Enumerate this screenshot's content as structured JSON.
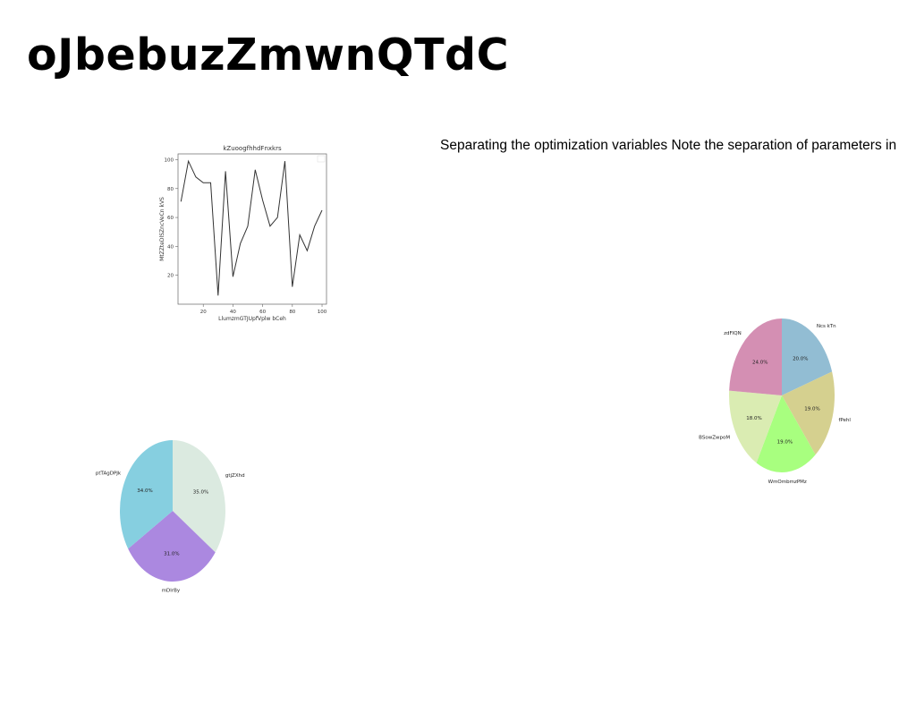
{
  "page": {
    "title": "oJbebuzZmwnQTdC",
    "text": "Separating the optimization variables Note the separation of parameters in"
  },
  "chart_data": [
    {
      "type": "line",
      "title": "kZuoogfhhdFnxkrs",
      "xlabel": "LlumzmGTJUpfVplw bCeh",
      "ylabel": "MtZZteDlSZncVeCn kVS",
      "xlim": [
        3,
        103
      ],
      "ylim": [
        0,
        104
      ],
      "xticks": [
        20,
        40,
        60,
        80,
        100
      ],
      "yticks": [
        20,
        40,
        60,
        80,
        100
      ],
      "grid": false,
      "legend": "top-right",
      "series": [
        {
          "color": "#333333",
          "x": [
            5,
            10,
            15,
            20,
            25,
            30,
            35,
            40,
            45,
            50,
            55,
            60,
            65,
            70,
            75,
            80,
            85,
            90,
            95,
            100
          ],
          "y": [
            71,
            99,
            88,
            84,
            84,
            6,
            92,
            19,
            42,
            54,
            93,
            72,
            54,
            60,
            99,
            12,
            48,
            37,
            54,
            65
          ]
        }
      ]
    },
    {
      "type": "pie",
      "start_angle": 90,
      "direction": "clockwise",
      "slices": [
        {
          "label": "Ncs kTn",
          "value": 20.0,
          "pct": "20.0%",
          "color": "#92bdd3"
        },
        {
          "label": "fPehl",
          "value": 19.0,
          "pct": "19.0%",
          "color": "#d5d08f"
        },
        {
          "label": "WmOmbmzPMz",
          "value": 19.0,
          "pct": "19.0%",
          "color": "#a8ff7f"
        },
        {
          "label": "BSowZwpoM",
          "value": 18.0,
          "pct": "18.0%",
          "color": "#daecb2"
        },
        {
          "label": "zdFIQN",
          "value": 24.0,
          "pct": "24.0%",
          "color": "#d48fb3"
        }
      ]
    },
    {
      "type": "pie",
      "start_angle": 90,
      "direction": "clockwise",
      "slices": [
        {
          "label": "gtjZXhd",
          "value": 35.0,
          "pct": "35.0%",
          "color": "#dbeae0"
        },
        {
          "label": "mDlrBy",
          "value": 31.0,
          "pct": "31.0%",
          "color": "#ab88e0"
        },
        {
          "label": "ptTAgDPJk",
          "value": 34.0,
          "pct": "34.0%",
          "color": "#86cfe0"
        }
      ]
    }
  ]
}
